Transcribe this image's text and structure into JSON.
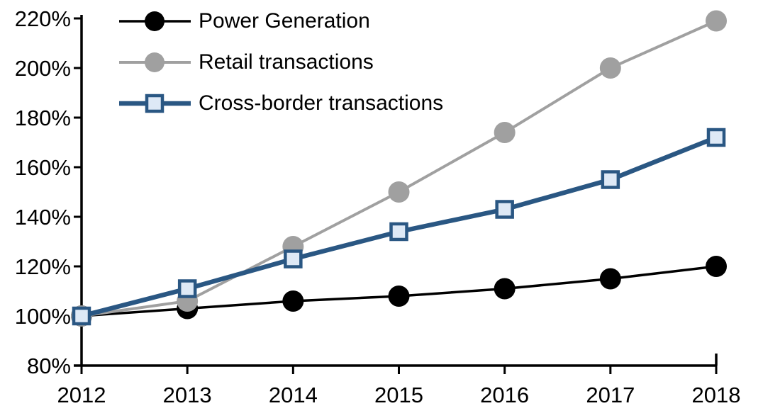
{
  "chart_data": {
    "type": "line",
    "title": "",
    "xlabel": "",
    "ylabel": "",
    "grid": false,
    "legend_position": "top-left-inside",
    "background_color": "#ffffff",
    "x": [
      2012,
      2013,
      2014,
      2015,
      2016,
      2017,
      2018
    ],
    "x_axis": {
      "tick_labels": [
        "2012",
        "2013",
        "2014",
        "2015",
        "2016",
        "2017",
        "2018"
      ]
    },
    "y_axis": {
      "min": 80,
      "max": 220,
      "tick_step": 20,
      "unit": "%",
      "ticks": [
        220,
        200,
        180,
        160,
        140,
        120,
        100,
        80
      ],
      "tick_labels": [
        "220%",
        "200%",
        "180%",
        "160%",
        "140%",
        "120%",
        "100%",
        "80%"
      ]
    },
    "series": [
      {
        "name": "Power Generation",
        "color": "#000000",
        "marker": "circle",
        "marker_fill": "#000000",
        "line_width": 3.5,
        "values": [
          100,
          103,
          106,
          108,
          111,
          115,
          120
        ]
      },
      {
        "name": "Retail transactions",
        "color": "#A0A0A0",
        "marker": "circle",
        "marker_fill": "#A0A0A0",
        "line_width": 4,
        "values": [
          100,
          106,
          128,
          150,
          174,
          200,
          219
        ]
      },
      {
        "name": "Cross-border transactions",
        "color": "#2A5783",
        "marker": "square",
        "marker_fill": "#DEE9F6",
        "line_width": 6.5,
        "values": [
          100,
          111,
          123,
          134,
          143,
          155,
          172
        ]
      }
    ]
  }
}
